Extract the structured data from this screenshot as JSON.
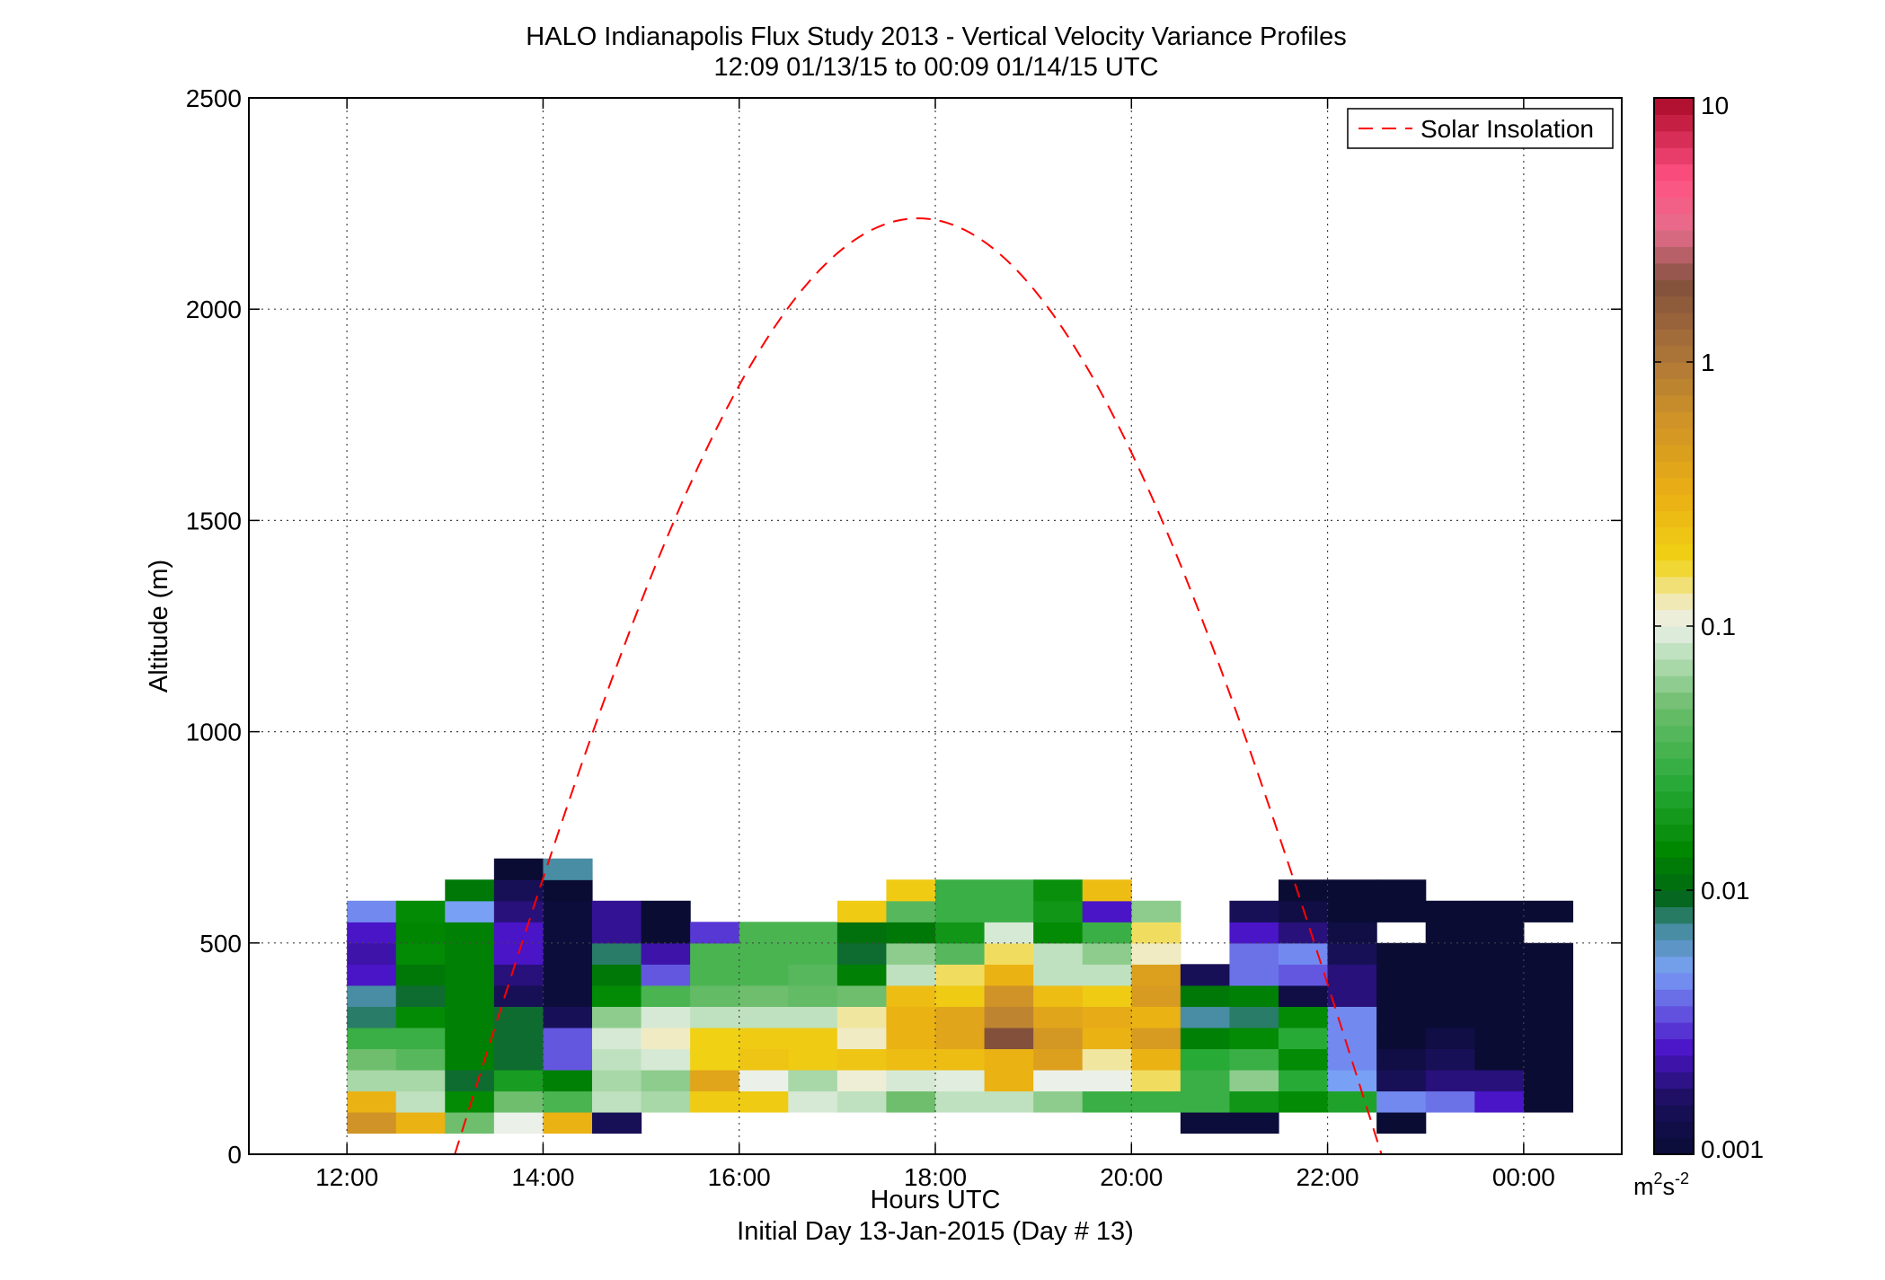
{
  "chart_data": {
    "type": "heatmap",
    "title": "HALO Indianapolis Flux Study 2013 - Vertical Velocity Variance Profiles",
    "subtitle": "12:09 01/13/15 to 00:09 01/14/15  UTC",
    "xlabel": "Hours UTC",
    "xlabel2": "Initial Day 13-Jan-2015 (Day # 13)",
    "ylabel": "Altitude (m)",
    "colorbar_unit": "m",
    "colorbar_unit_sup1": "2",
    "colorbar_unit_mid": "s",
    "colorbar_unit_sup2": "-2",
    "xlim": [
      11.0,
      25.0
    ],
    "ylim": [
      0,
      2500
    ],
    "x_ticks": [
      12,
      14,
      16,
      18,
      20,
      22,
      24
    ],
    "x_tick_labels": [
      "12:00",
      "14:00",
      "16:00",
      "18:00",
      "20:00",
      "22:00",
      "00:00"
    ],
    "y_ticks": [
      0,
      500,
      1000,
      1500,
      2000,
      2500
    ],
    "y_tick_labels": [
      "0",
      "500",
      "1000",
      "1500",
      "2000",
      "2500"
    ],
    "colorbar": {
      "scale": "log",
      "min": 0.001,
      "max": 10,
      "ticks": [
        0.001,
        0.01,
        0.1,
        1,
        10
      ],
      "tick_labels": [
        "0.001",
        "0.01",
        "0.1",
        "1",
        "10"
      ]
    },
    "grid": true,
    "legend": {
      "position": "top-right",
      "entries": [
        "Solar Insolation"
      ]
    },
    "solar_insolation": {
      "color": "#ff0000",
      "style": "dashed",
      "start_hour": 13.1,
      "end_hour": 22.55,
      "peak_hour": 17.85,
      "peak_altitude": 2215
    },
    "bin_time_hours": 0.5,
    "bin_altitude_m": 50,
    "first_bin_center_hour": 12.25,
    "first_bin_center_altitude": 75,
    "columns_bottom_up": [
      [
        0.6,
        0.3,
        0.07,
        0.05,
        0.03,
        0.008,
        0.007,
        0.0025,
        0.0022,
        0.0025,
        0.0045
      ],
      [
        0.3,
        0.08,
        0.07,
        0.04,
        0.03,
        0.015,
        0.009,
        0.012,
        0.015,
        0.014,
        0.015
      ],
      [
        0.05,
        0.015,
        0.009,
        0.013,
        0.013,
        0.013,
        0.013,
        0.013,
        0.013,
        0.013,
        0.005,
        0.012
      ],
      [
        0.1,
        0.05,
        0.02,
        0.009,
        0.009,
        0.009,
        0.0015,
        0.0018,
        0.0025,
        0.0025,
        0.0018,
        0.0015,
        0.001
      ],
      [
        0.3,
        0.035,
        0.013,
        0.0035,
        0.0035,
        0.0015,
        0.0011,
        0.0011,
        0.0011,
        0.0011,
        0.0011,
        0.001,
        0.007
      ],
      [
        0.0015,
        0.08,
        0.07,
        0.08,
        0.09,
        0.06,
        0.015,
        0.012,
        0.008,
        0.002,
        0.002
      ],
      [
        null,
        0.07,
        0.06,
        0.09,
        0.12,
        0.09,
        0.035,
        0.0035,
        0.0022,
        0.001,
        0.001
      ],
      [
        null,
        0.2,
        0.4,
        0.18,
        0.18,
        0.08,
        0.045,
        0.035,
        0.035,
        0.003
      ],
      [
        null,
        0.2,
        0.1,
        0.22,
        0.2,
        0.08,
        0.05,
        0.035,
        0.035,
        0.035
      ],
      [
        null,
        0.09,
        0.07,
        0.2,
        0.2,
        0.08,
        0.045,
        0.04,
        0.035,
        0.035
      ],
      [
        null,
        0.08,
        0.11,
        0.22,
        0.12,
        0.13,
        0.05,
        0.013,
        0.009,
        0.011,
        0.2
      ],
      [
        null,
        0.05,
        0.09,
        0.25,
        0.3,
        0.3,
        0.25,
        0.08,
        0.06,
        0.012,
        0.04,
        0.2
      ],
      [
        null,
        0.08,
        0.095,
        0.25,
        0.4,
        0.4,
        0.2,
        0.15,
        0.04,
        0.018,
        0.03,
        0.03
      ],
      [
        null,
        0.08,
        0.3,
        0.3,
        2,
        0.8,
        0.6,
        0.3,
        0.15,
        0.09,
        0.03,
        0.03
      ],
      [
        null,
        0.06,
        0.1,
        0.45,
        0.55,
        0.4,
        0.25,
        0.08,
        0.08,
        0.015,
        0.018,
        0.016
      ],
      [
        null,
        0.03,
        0.1,
        0.13,
        0.3,
        0.35,
        0.2,
        0.08,
        0.06,
        0.03,
        0.0025,
        0.25
      ],
      [
        null,
        0.03,
        0.15,
        0.3,
        0.5,
        0.3,
        0.5,
        0.45,
        0.12,
        0.15,
        0.06
      ],
      [
        0.0011,
        0.03,
        0.03,
        0.025,
        0.013,
        0.007,
        0.012,
        0.0015
      ],
      [
        0.0011,
        0.018,
        0.06,
        0.03,
        0.015,
        0.008,
        0.013,
        0.004,
        0.004,
        0.0025,
        0.0015
      ],
      [
        null,
        0.015,
        0.025,
        0.015,
        0.025,
        0.015,
        0.0012,
        0.0035,
        0.0045,
        0.0018,
        0.0012,
        0.001
      ],
      [
        null,
        0.022,
        0.005,
        0.0045,
        0.0045,
        0.0045,
        0.0018,
        0.0018,
        0.0015,
        0.0012,
        0.001,
        0.001
      ],
      [
        0.001,
        0.0045,
        0.0015,
        0.0012,
        0.001,
        0.001,
        0.001,
        0.001,
        0.001,
        null,
        0.001,
        0.001
      ],
      [
        null,
        0.004,
        0.0018,
        0.0015,
        0.0012,
        0.001,
        0.001,
        0.001,
        0.001,
        0.001,
        0.001
      ],
      [
        null,
        0.0025,
        0.0018,
        0.001,
        0.001,
        0.001,
        0.001,
        0.001,
        0.001,
        0.001,
        0.001
      ],
      [
        null,
        0.001,
        0.001,
        0.001,
        0.001,
        0.001,
        0.001,
        0.001,
        0.001,
        null,
        0.001
      ]
    ]
  },
  "colors": {
    "solar_line": "#ff0000",
    "grid": "#444444",
    "frame": "#000000"
  }
}
